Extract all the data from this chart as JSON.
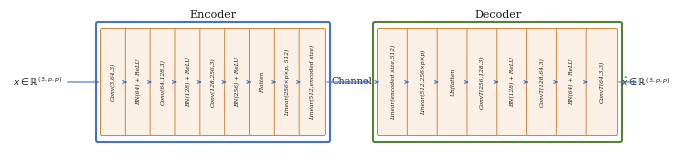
{
  "encoder_title": "Encoder",
  "decoder_title": "Decoder",
  "encoder_blocks": [
    "Conv(3,64,3)",
    "BN(64) + ReLU",
    "Conv(64,128,3)",
    "BN(128) + ReLU",
    "Conv(128,256,3)",
    "BN(256) + ReLU",
    "Flatten",
    "Linear(256×p×p, 512)",
    "Linear(512,encoded size)"
  ],
  "decoder_blocks": [
    "Linear(encoded size,512)",
    "Linear(512,256×p×p)",
    "Unflatten",
    "ConvT(256,128,3)",
    "BN(128) + ReLU",
    "ConvT(128,64,3)",
    "BN(64) + ReLU",
    "ConvT(64,3,3)"
  ],
  "input_label": "$x \\in \\mathbb{R}^{(3,p,p)}$",
  "output_label": "$\\hat{x} \\in \\mathbb{R}^{(3,p,p)}$",
  "channel_label": "Channel",
  "encoder_box_color": "#4472C4",
  "decoder_box_color": "#548235",
  "block_face_color": "#FAF0E6",
  "block_edge_color": "#CD853F",
  "arrow_color": "#4472C4",
  "text_color": "#1a1a1a",
  "bg_color": "#ffffff"
}
